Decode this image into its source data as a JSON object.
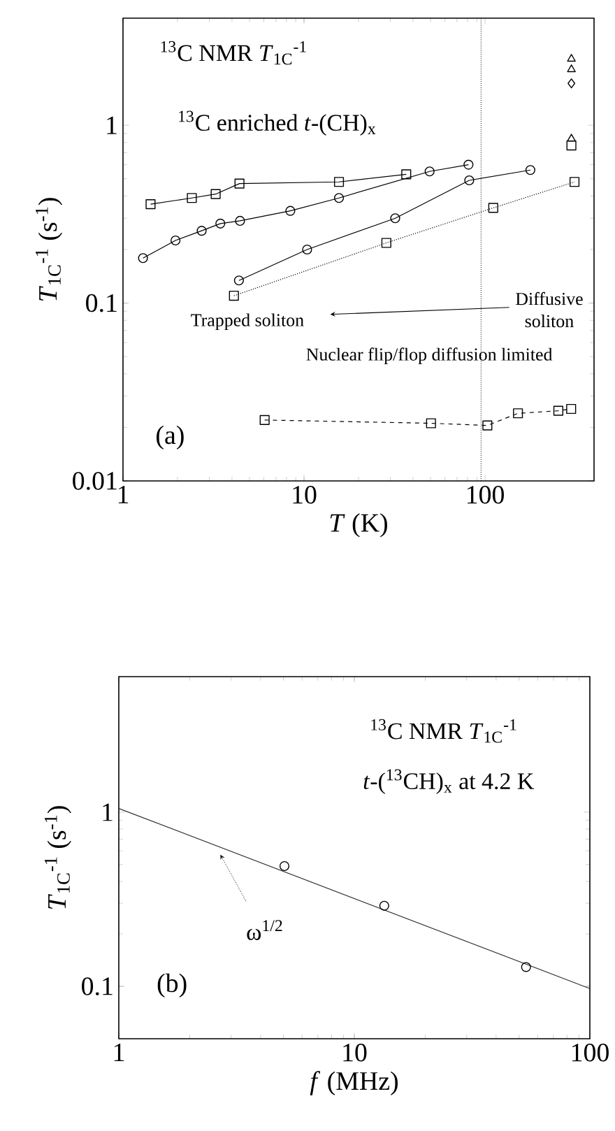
{
  "chart_data": [
    {
      "type": "line",
      "xlabel": "*T* (K)",
      "ylabel": "*T*$_{1C}$$^{-1}$ (s$^{-1}$)",
      "log": "xy",
      "xlim": [
        1,
        400
      ],
      "ylim": [
        0.01,
        4
      ],
      "xticks": [
        1,
        10,
        100
      ],
      "yticks": [
        0.01,
        0.1,
        1
      ],
      "series": [
        {
          "color": "#000000",
          "marker": "square",
          "line_style": "solid",
          "x": [
            1.42,
            2.4,
            3.25,
            4.4,
            15.6,
            36.7
          ],
          "values": [
            0.36,
            0.39,
            0.41,
            0.47,
            0.48,
            0.53
          ]
        },
        {
          "color": "#000000",
          "marker": "circle",
          "line_style": "solid",
          "x": [
            1.29,
            1.95,
            2.72,
            3.45,
            4.43,
            8.4,
            15.6,
            49.4,
            81
          ],
          "values": [
            0.179,
            0.225,
            0.255,
            0.28,
            0.29,
            0.33,
            0.39,
            0.55,
            0.6
          ]
        },
        {
          "color": "#000000",
          "marker": "circle",
          "line_style": "solid",
          "x": [
            4.37,
            10.4,
            31.9,
            81.8,
            178
          ],
          "values": [
            0.134,
            0.2,
            0.3,
            0.49,
            0.56
          ]
        },
        {
          "color": "#000000",
          "marker": "square",
          "line_style": "dotted",
          "x": [
            4.1,
            28.5,
            111,
            312
          ],
          "values": [
            0.11,
            0.218,
            0.343,
            0.48
          ]
        },
        {
          "color": "#000000",
          "marker": "square",
          "line_style": "dashed",
          "x": [
            6.06,
            50.3,
            103,
            152,
            254,
            299
          ],
          "values": [
            0.022,
            0.0211,
            0.0205,
            0.024,
            0.0248,
            0.0254
          ]
        },
        {
          "type": "scatter",
          "color": "#000000",
          "marker": "triangle",
          "x": [
            300
          ],
          "values": [
            2.36
          ]
        },
        {
          "type": "scatter",
          "color": "#000000",
          "marker": "triangle",
          "x": [
            300
          ],
          "values": [
            2.06
          ]
        },
        {
          "type": "scatter",
          "color": "#000000",
          "marker": "diamond",
          "x": [
            300
          ],
          "values": [
            1.72
          ]
        },
        {
          "type": "scatter",
          "color": "#000000",
          "marker": "triangle",
          "x": [
            300
          ],
          "values": [
            0.84
          ]
        },
        {
          "type": "scatter",
          "color": "#000000",
          "marker": "square",
          "x": [
            300
          ],
          "values": [
            0.77
          ]
        }
      ],
      "ref_lines": [
        {
          "axis": "x",
          "value": 95,
          "line_style": "dotted"
        }
      ],
      "annotations": [
        "$^{13}$C NMR *T*$_{1C}$$^{-1}$",
        "$^{13}$C enriched *t*-(CH)$_{x}$",
        "Diffusive soliton",
        "Trapped soliton",
        "Nuclear flip/flop diffusion limited",
        "(a)"
      ]
    },
    {
      "type": "scatter",
      "xlabel": "*f* (MHz)",
      "ylabel": "*T*$_{1C}$$^{-1}$ (s$^{-1}$)",
      "log": "xy",
      "xlim": [
        1,
        100
      ],
      "ylim": [
        0.05,
        6
      ],
      "xticks": [
        1,
        10,
        100
      ],
      "yticks": [
        0.1,
        1
      ],
      "series": [
        {
          "color": "#000000",
          "marker": "circle",
          "x": [
            5.05,
            13.4,
            53.6
          ],
          "values": [
            0.49,
            0.29,
            0.129
          ]
        },
        {
          "type": "line",
          "color": "#333333",
          "marker": "none",
          "line_style": "solid",
          "x": [
            1,
            100
          ],
          "values": [
            1.05,
            0.097
          ]
        }
      ],
      "annotations": [
        "$^{13}$C NMR *T*$_{1C}$$^{-1}$",
        "*t*-($^{13}$CH)$_{x}$ at 4.2 K",
        {
          "text": "ω$^{1/2}$",
          "x": 2.7,
          "y": 0.57
        },
        "(b)"
      ]
    }
  ]
}
